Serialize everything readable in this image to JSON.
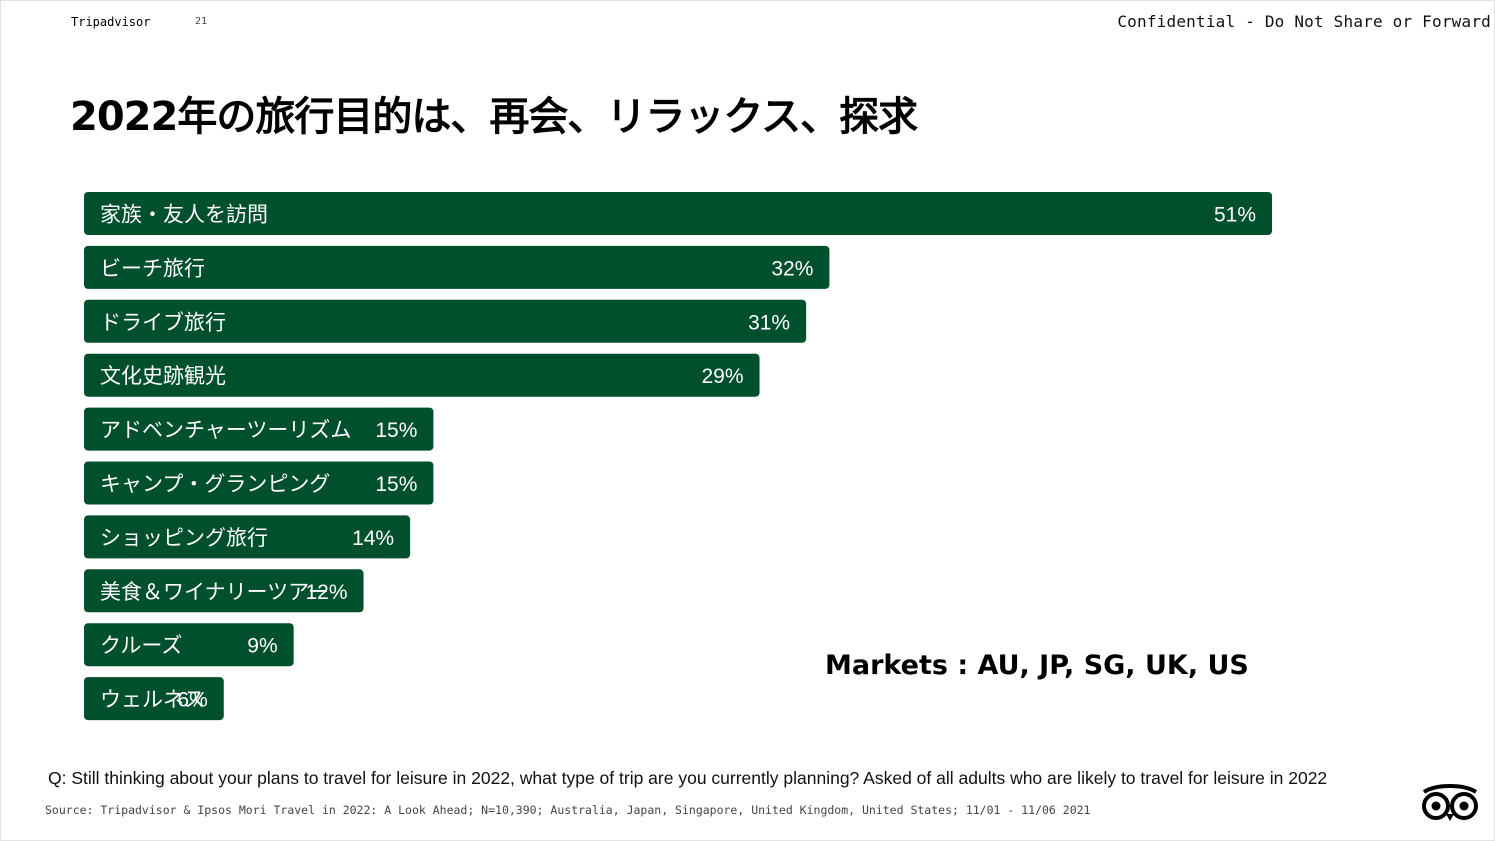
{
  "header": {
    "brand": "Tripadvisor",
    "page_number": "21",
    "confidential": "Confidential - Do Not Share or Forward"
  },
  "title": "2022年の旅行目的は、再会、リラックス、探求",
  "markets": "Markets : AU, JP, SG, UK, US",
  "question": "Q: Still thinking about your plans to travel for leisure in 2022, what type of trip are you currently planning?  Asked of all adults who are likely to travel for leisure in 2022",
  "source": "Source: Tripadvisor & Ipsos Mori Travel in 2022: A Look Ahead; N=10,390; Australia, Japan, Singapore, United Kingdom, United States; 11/01 - 11/06 2021",
  "logo_icon": "tripadvisor-owl-icon",
  "colors": {
    "bar": "#004f2d",
    "bar_text": "#ffffff"
  },
  "chart_data": {
    "type": "bar",
    "orientation": "horizontal",
    "unit": "%",
    "categories": [
      "家族・友人を訪問",
      "ビーチ旅行",
      "ドライブ旅行",
      "文化史跡観光",
      "アドベンチャーツーリズム",
      "キャンプ・グランピング",
      "ショッピング旅行",
      "美食＆ワイナリーツアー",
      "クルーズ",
      "ウェルネス"
    ],
    "values": [
      51,
      32,
      31,
      29,
      15,
      15,
      14,
      12,
      9,
      6
    ],
    "value_labels": [
      "51%",
      "32%",
      "31%",
      "29%",
      "15%",
      "15%",
      "14%",
      "12%",
      "9%",
      "6%"
    ],
    "xlim": [
      0,
      51
    ],
    "grid": false,
    "legend": "none"
  }
}
